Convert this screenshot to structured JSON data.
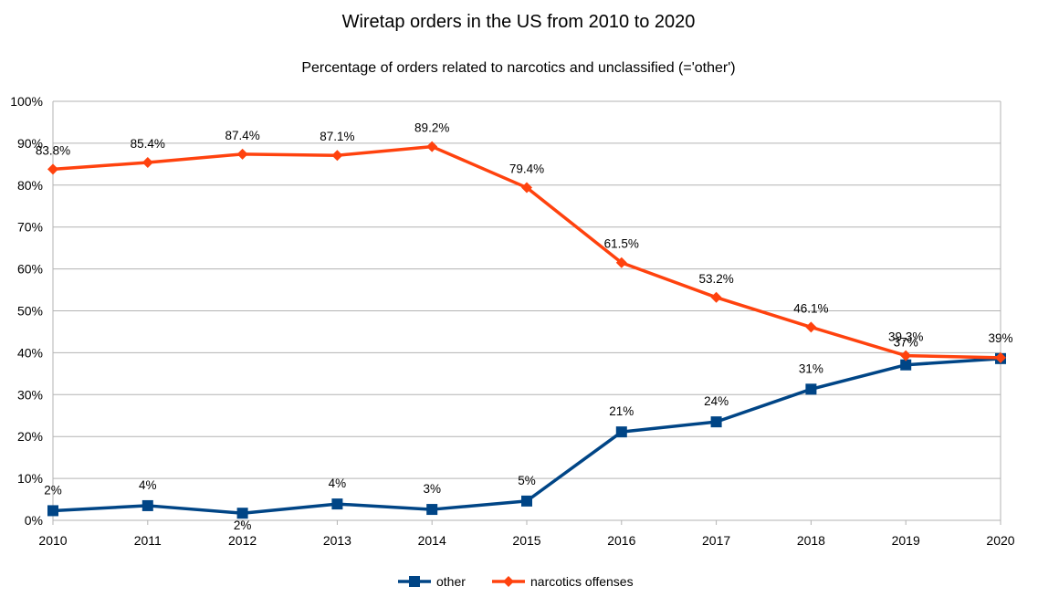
{
  "chart_data": {
    "type": "line",
    "title": "Wiretap orders in the US from 2010 to 2020",
    "subtitle": "Percentage of orders related to narcotics and unclassified (='other')",
    "xlabel": "",
    "ylabel": "",
    "categories": [
      "2010",
      "2011",
      "2012",
      "2013",
      "2014",
      "2015",
      "2016",
      "2017",
      "2018",
      "2019",
      "2020"
    ],
    "y_ticks": [
      "0%",
      "10%",
      "20%",
      "30%",
      "40%",
      "50%",
      "60%",
      "70%",
      "80%",
      "90%",
      "100%"
    ],
    "ylim": [
      0,
      100
    ],
    "grid": true,
    "legend_position": "bottom",
    "series": [
      {
        "name": "other",
        "color": "#004586",
        "marker": "square",
        "values": [
          2.3,
          3.5,
          1.7,
          3.9,
          2.6,
          4.6,
          21.1,
          23.5,
          31.3,
          37.1,
          38.6
        ],
        "labels": [
          "2%",
          "4%",
          "2%",
          "4%",
          "3%",
          "5%",
          "21%",
          "24%",
          "31%",
          "37%",
          "39%"
        ]
      },
      {
        "name": "narcotics offenses",
        "color": "#ff420e",
        "marker": "diamond",
        "values": [
          83.8,
          85.4,
          87.4,
          87.1,
          89.2,
          79.4,
          61.5,
          53.2,
          46.1,
          39.3,
          38.8
        ],
        "labels": [
          "83.8%",
          "85.4%",
          "87.4%",
          "87.1%",
          "89.2%",
          "79.4%",
          "61.5%",
          "53.2%",
          "46.1%",
          "39.3%",
          ""
        ]
      }
    ]
  }
}
